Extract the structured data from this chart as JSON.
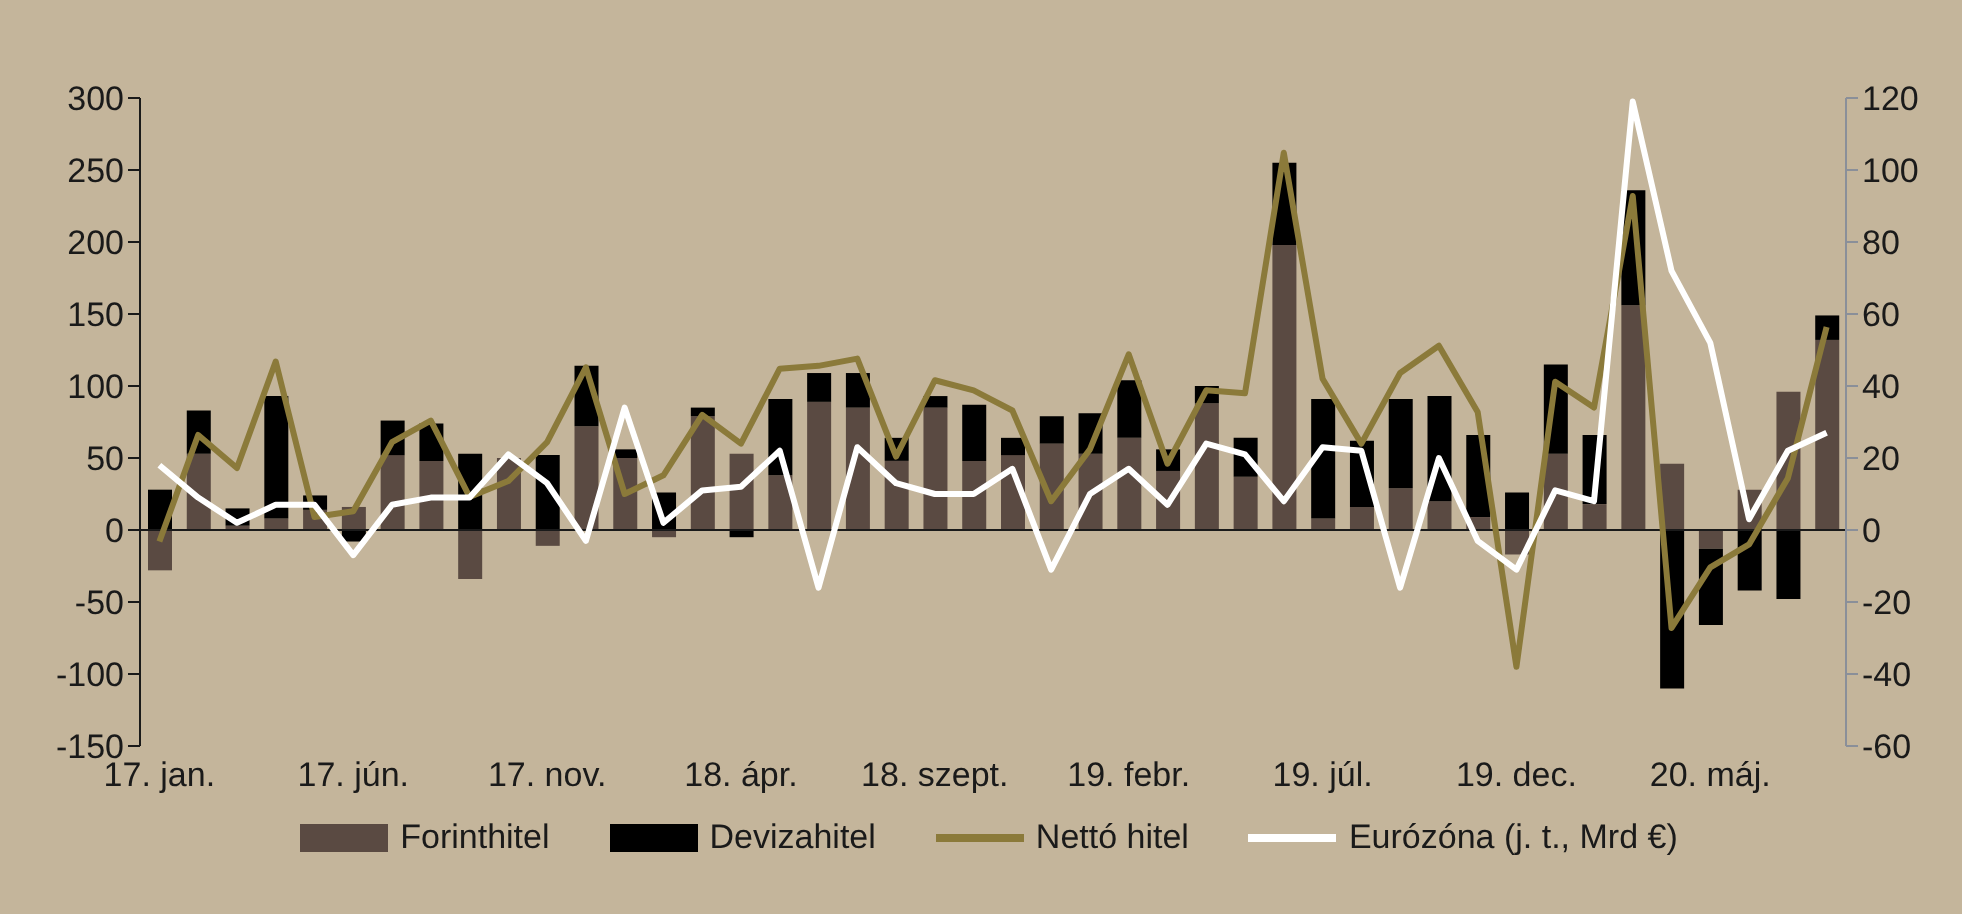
{
  "chart_data": {
    "type": "bar",
    "stacked": true,
    "categories": [
      "17. jan.",
      null,
      null,
      null,
      null,
      "17. jún.",
      null,
      null,
      null,
      null,
      "17. nov.",
      null,
      null,
      null,
      null,
      "18. ápr.",
      null,
      null,
      null,
      null,
      "18. szept.",
      null,
      null,
      null,
      null,
      "19. febr.",
      null,
      null,
      null,
      null,
      "19. júl.",
      null,
      null,
      null,
      null,
      "19. dec.",
      null,
      null,
      null,
      null,
      "20. máj.",
      null,
      null,
      null
    ],
    "series": [
      {
        "name": "Forinthitel",
        "color": "#5a4a42",
        "values": [
          -28,
          53,
          3,
          8,
          14,
          16,
          52,
          48,
          -34,
          50,
          -11,
          72,
          50,
          -5,
          79,
          53,
          38,
          89,
          85,
          48,
          85,
          48,
          52,
          60,
          53,
          64,
          41,
          88,
          37,
          198,
          8,
          16,
          29,
          20,
          9,
          -17,
          53,
          18,
          156,
          46,
          -13,
          28,
          96,
          132
        ]
      },
      {
        "name": "Devizahitel",
        "color": "#000000",
        "values": [
          28,
          30,
          12,
          85,
          10,
          -8,
          24,
          26,
          53,
          null,
          52,
          42,
          6,
          26,
          6,
          -5,
          53,
          20,
          24,
          16,
          8,
          39,
          12,
          19,
          28,
          40,
          15,
          12,
          27,
          57,
          83,
          46,
          62,
          73,
          57,
          26,
          62,
          48,
          80,
          -110,
          -53,
          -42,
          -48,
          17
        ]
      },
      {
        "name": "Nettó hitel",
        "type": "line",
        "color": "#8b7a3a",
        "values": [
          -8,
          66,
          43,
          117,
          9,
          13,
          61,
          76,
          23,
          34,
          61,
          113,
          25,
          38,
          80,
          60,
          112,
          114,
          119,
          51,
          104,
          97,
          83,
          20,
          56,
          122,
          46,
          97,
          95,
          262,
          105,
          60,
          109,
          128,
          82,
          -95,
          103,
          85,
          232,
          -68,
          -26,
          -10,
          36,
          141
        ]
      },
      {
        "name": "Eurózóna (j. t., Mrd €)",
        "type": "line",
        "axis": "y2",
        "color": "#ffffff",
        "values": [
          18,
          9,
          2,
          7,
          7,
          -7,
          7,
          9,
          9,
          21,
          13,
          -3,
          34,
          2,
          11,
          12,
          22,
          -16,
          23,
          13,
          10,
          10,
          17,
          -11,
          10,
          17,
          7,
          24,
          21,
          8,
          23,
          22,
          -16,
          20,
          -3,
          -11,
          11,
          8,
          119,
          72,
          52,
          3,
          22,
          27
        ]
      }
    ],
    "ylim": [
      -150,
      300
    ],
    "yticks": [
      -150,
      -100,
      -50,
      0,
      50,
      100,
      150,
      200,
      250,
      300
    ],
    "y2lim": [
      -60,
      120
    ],
    "y2ticks": [
      -60,
      -40,
      -20,
      0,
      20,
      40,
      60,
      80,
      100,
      120
    ],
    "legend": "bottom",
    "marker": "none",
    "line_style": "solid"
  }
}
